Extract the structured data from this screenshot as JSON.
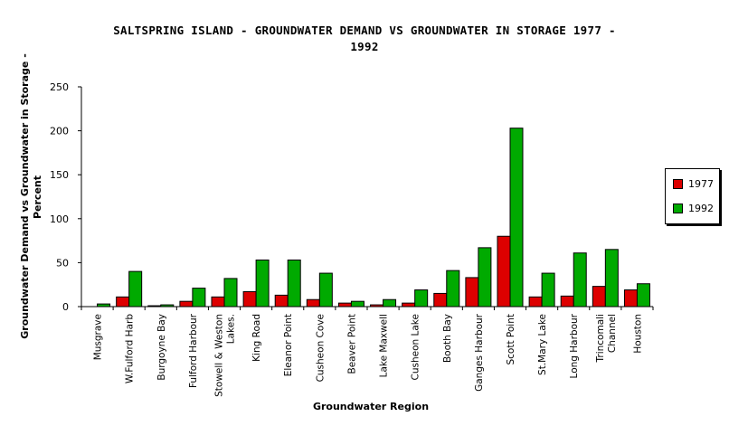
{
  "chart_data": {
    "type": "bar",
    "title_line1": "SALTSPRING ISLAND - GROUNDWATER DEMAND VS GROUNDWATER IN STORAGE   1977 -",
    "title_line2": "1992",
    "xlabel": "Groundwater Region",
    "ylabel_line1": "Groundwater Demand vs Groundwater in Storage -",
    "ylabel_line2": "Percent",
    "ylim": [
      0,
      250
    ],
    "yticks": [
      0,
      50,
      100,
      150,
      200,
      250
    ],
    "legend_position": "right",
    "grid": false,
    "categories": [
      [
        "Musgrave"
      ],
      [
        "W.Fulford Harb"
      ],
      [
        "Burgoyne Bay"
      ],
      [
        "Fulford Harbour"
      ],
      [
        "Stowell & Weston",
        "Lakes."
      ],
      [
        "King Road"
      ],
      [
        "Eleanor Point"
      ],
      [
        "Cusheon Cove"
      ],
      [
        "Beaver Point"
      ],
      [
        "Lake Maxwell"
      ],
      [
        "Cusheon Lake"
      ],
      [
        "Booth Bay"
      ],
      [
        "Ganges Harbour"
      ],
      [
        "Scott Point"
      ],
      [
        "St.Mary Lake"
      ],
      [
        "Long Harbour"
      ],
      [
        "Trincomali",
        "Channel"
      ],
      [
        "Houston"
      ]
    ],
    "series": [
      {
        "name": "1977",
        "color": "#dd0000",
        "values": [
          0,
          11,
          1,
          6,
          11,
          17,
          13,
          8,
          4,
          2,
          4,
          15,
          33,
          80,
          11,
          12,
          23,
          19
        ]
      },
      {
        "name": "1992",
        "color": "#00aa00",
        "values": [
          3,
          40,
          2,
          21,
          32,
          53,
          53,
          38,
          6,
          8,
          19,
          41,
          67,
          203,
          38,
          61,
          65,
          26
        ]
      }
    ]
  }
}
